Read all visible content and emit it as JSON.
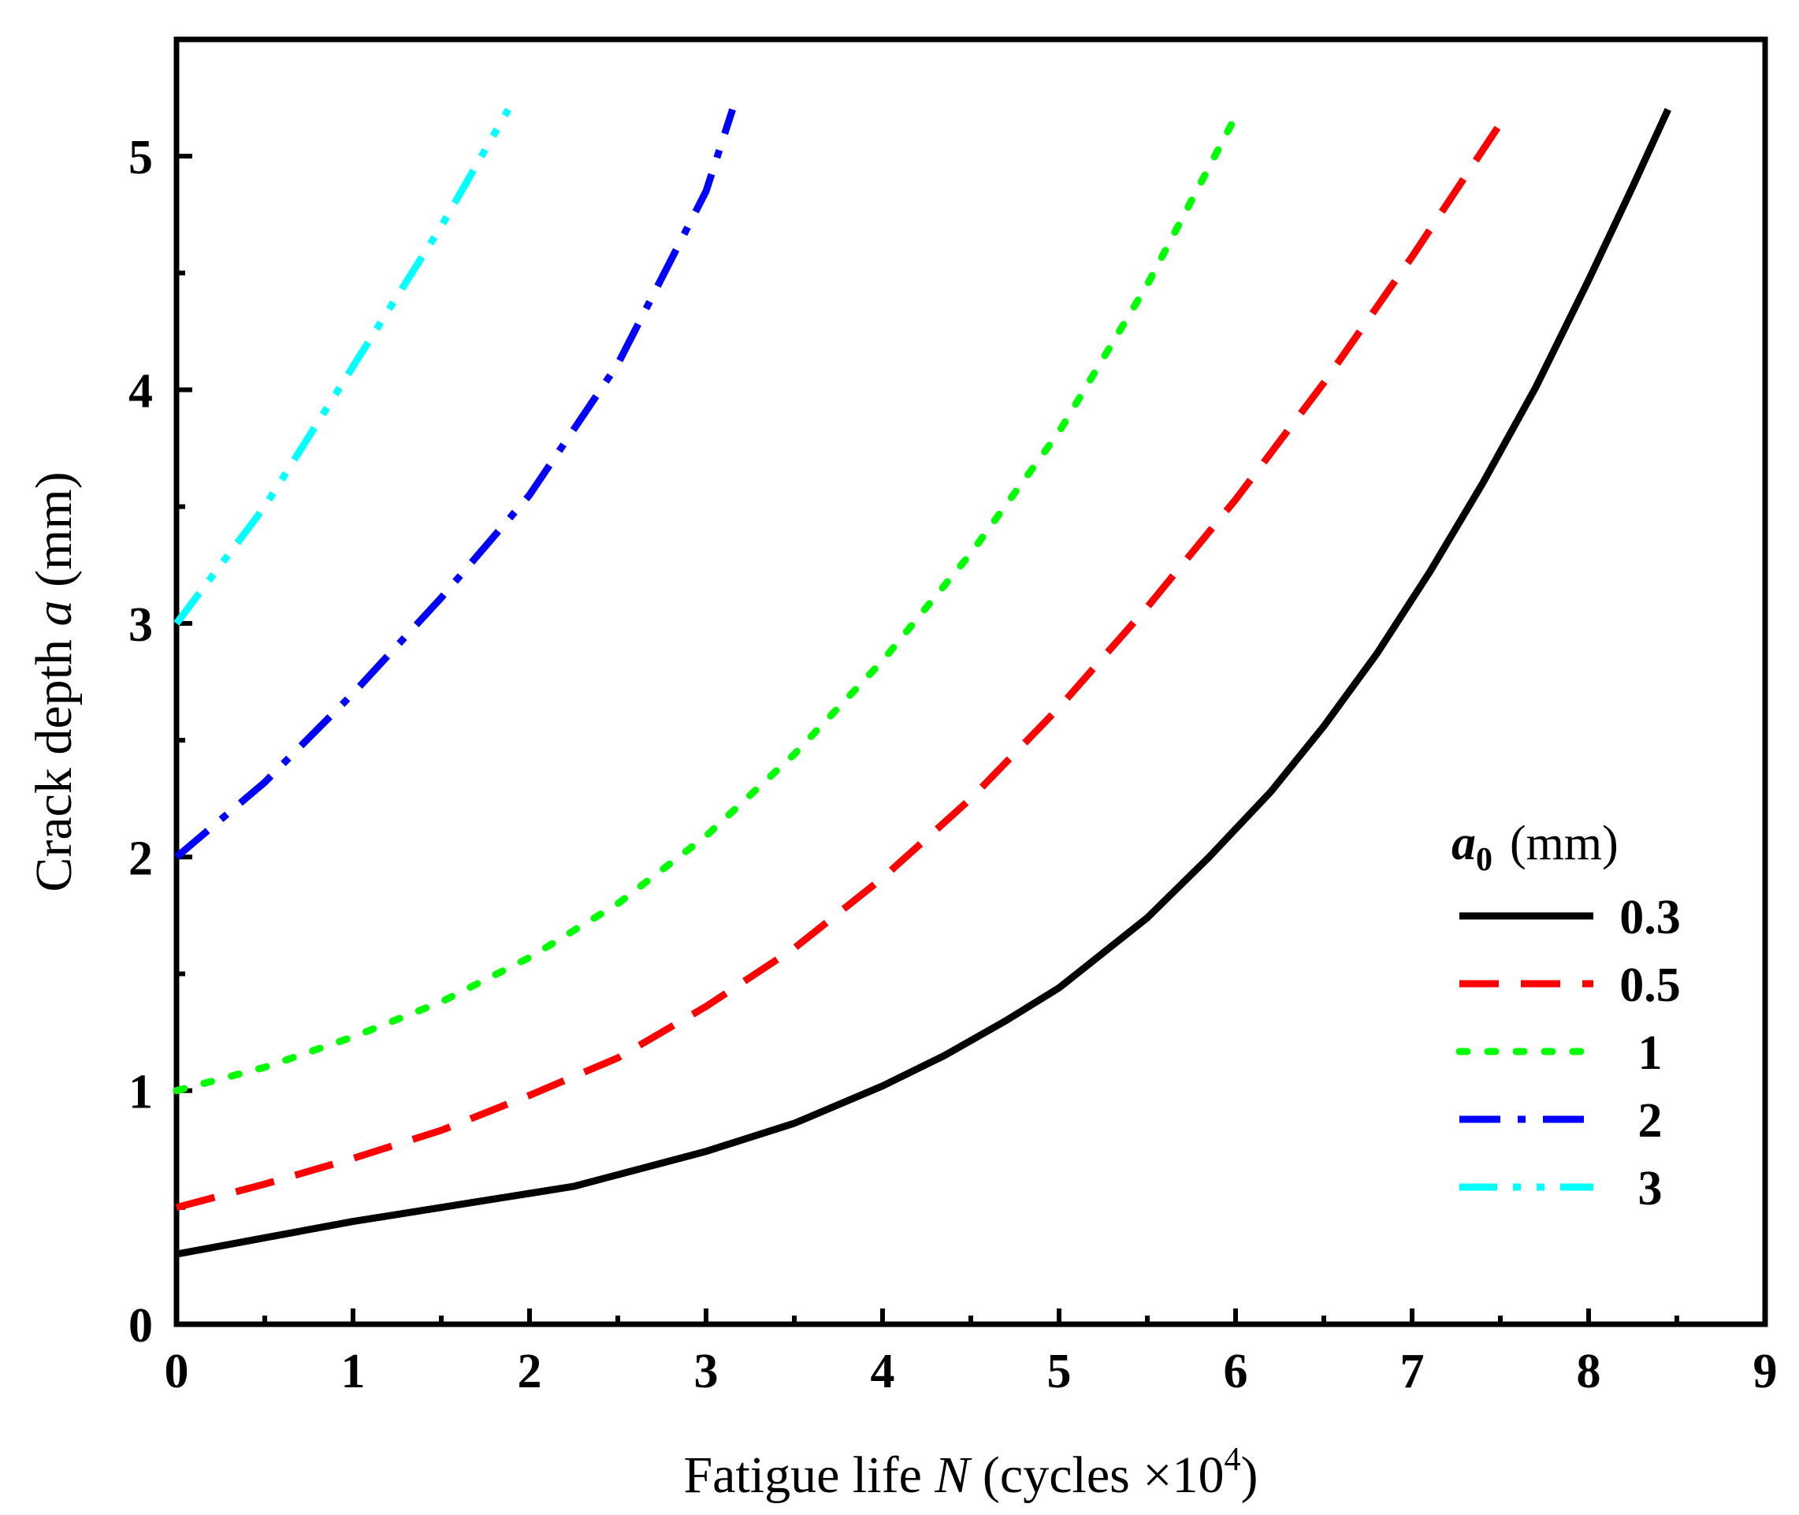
{
  "chart_data": {
    "type": "line",
    "title": "",
    "xlabel": {
      "text": "Fatigue life ",
      "var": "N",
      "unit_open": " (cycles  ×10",
      "exponent": "4",
      "unit_close": ")"
    },
    "ylabel": {
      "text": "Crack depth ",
      "var": "a",
      "unit": " (mm)"
    },
    "xlim": [
      0,
      9
    ],
    "ylim": [
      0,
      5.5
    ],
    "xticks": [
      0,
      1,
      2,
      3,
      4,
      5,
      6,
      7,
      8,
      9
    ],
    "yticks": [
      0,
      1,
      2,
      3,
      4,
      5
    ],
    "grid": false,
    "legend": {
      "position": "right",
      "title_var": "a",
      "title_sub": "0",
      "title_unit": "(mm)"
    },
    "series": [
      {
        "name": "0.3",
        "color": "#000000",
        "style": "solid",
        "x": [
          0,
          0.5,
          1,
          1.5,
          2,
          2.25,
          3,
          3.5,
          4,
          4.35,
          4.7,
          5,
          5.5,
          5.85,
          6.2,
          6.5,
          6.8,
          7.1,
          7.4,
          7.7,
          8,
          8.25,
          8.45
        ],
        "y": [
          0.3,
          0.37,
          0.44,
          0.5,
          0.56,
          0.59,
          0.74,
          0.86,
          1.02,
          1.15,
          1.3,
          1.44,
          1.74,
          2.0,
          2.28,
          2.56,
          2.87,
          3.22,
          3.6,
          4.01,
          4.47,
          4.87,
          5.2
        ]
      },
      {
        "name": "0.5",
        "color": "#ff0000",
        "style": "dash",
        "x": [
          0,
          0.5,
          1,
          1.5,
          2,
          2.5,
          3,
          3.5,
          4,
          4.5,
          5,
          5.5,
          6,
          6.5,
          7,
          7.5
        ],
        "y": [
          0.5,
          0.6,
          0.71,
          0.83,
          0.98,
          1.14,
          1.36,
          1.61,
          1.91,
          2.25,
          2.64,
          3.07,
          3.53,
          4.03,
          4.57,
          5.14
        ]
      },
      {
        "name": "1",
        "color": "#00ff00",
        "style": "dot",
        "x": [
          0,
          0.5,
          1,
          1.5,
          2,
          2.5,
          3,
          3.5,
          4,
          4.5,
          5,
          5.5,
          6
        ],
        "y": [
          1.0,
          1.1,
          1.23,
          1.38,
          1.57,
          1.8,
          2.09,
          2.44,
          2.84,
          3.3,
          3.82,
          4.45,
          5.17
        ]
      },
      {
        "name": "2",
        "color": "#0000ff",
        "style": "dashdot",
        "x": [
          0,
          0.5,
          1,
          1.5,
          2,
          2.5,
          3,
          3.15
        ],
        "y": [
          2.0,
          2.32,
          2.7,
          3.11,
          3.55,
          4.11,
          4.85,
          5.2
        ]
      },
      {
        "name": "3",
        "color": "#00ffff",
        "style": "dashdotdot",
        "x": [
          0,
          0.5,
          1,
          1.5,
          1.88
        ],
        "y": [
          3.0,
          3.5,
          4.1,
          4.7,
          5.2
        ]
      }
    ]
  }
}
